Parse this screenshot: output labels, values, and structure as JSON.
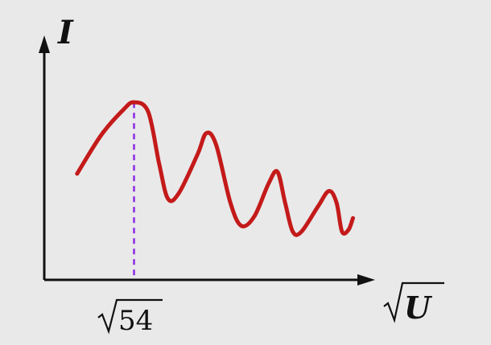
{
  "chart_data": {
    "type": "line",
    "title": "",
    "ylabel": "I",
    "xlabel": "U",
    "xlabel_radical": true,
    "tick_label": "54",
    "tick_label_radical": true,
    "series": [
      {
        "color": "#c41a1a",
        "points": [
          [
            0.3,
            0.55
          ],
          [
            0.52,
            0.75
          ],
          [
            0.72,
            0.88
          ],
          [
            0.82,
            0.92
          ],
          [
            0.95,
            0.87
          ],
          [
            1.05,
            0.6
          ],
          [
            1.13,
            0.42
          ],
          [
            1.23,
            0.45
          ],
          [
            1.4,
            0.65
          ],
          [
            1.48,
            0.76
          ],
          [
            1.57,
            0.7
          ],
          [
            1.7,
            0.4
          ],
          [
            1.8,
            0.28
          ],
          [
            1.92,
            0.33
          ],
          [
            2.05,
            0.5
          ],
          [
            2.13,
            0.56
          ],
          [
            2.2,
            0.4
          ],
          [
            2.27,
            0.25
          ],
          [
            2.35,
            0.25
          ],
          [
            2.5,
            0.38
          ],
          [
            2.6,
            0.46
          ],
          [
            2.67,
            0.4
          ],
          [
            2.72,
            0.25
          ],
          [
            2.78,
            0.26
          ],
          [
            2.82,
            0.32
          ]
        ]
      }
    ],
    "marker_x": 0.82,
    "xlim": [
      0,
      3.5
    ],
    "ylim": [
      0,
      1.0
    ],
    "colors": {
      "curve": "#c41a1a",
      "marker": "#8a2be2",
      "axes": "#111111",
      "background": "#e9e9e9"
    }
  }
}
